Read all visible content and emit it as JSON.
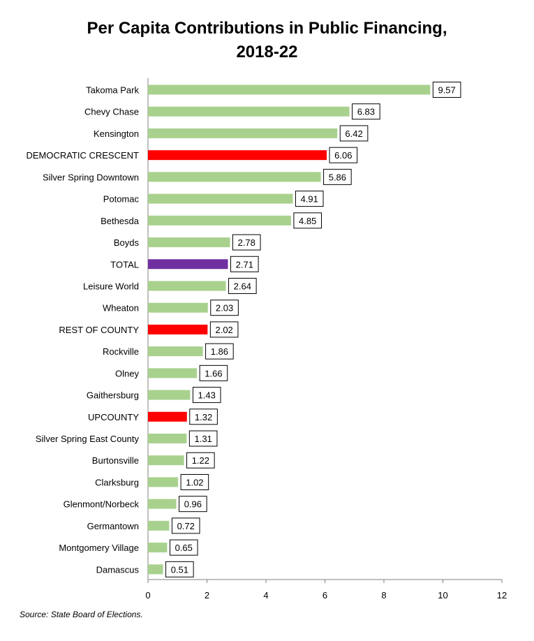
{
  "chart_data": {
    "type": "bar",
    "orientation": "horizontal",
    "title": "Per Capita Contributions in Public Financing,\n2018-22",
    "categories": [
      "Takoma Park",
      "Chevy Chase",
      "Kensington",
      "DEMOCRATIC CRESCENT",
      "Silver Spring Downtown",
      "Potomac",
      "Bethesda",
      "Boyds",
      "TOTAL",
      "Leisure World",
      "Wheaton",
      "REST OF COUNTY",
      "Rockville",
      "Olney",
      "Gaithersburg",
      "UPCOUNTY",
      "Silver Spring East County",
      "Burtonsville",
      "Clarksburg",
      "Glenmont/Norbeck",
      "Germantown",
      "Montgomery Village",
      "Damascus"
    ],
    "values": [
      9.57,
      6.83,
      6.42,
      6.06,
      5.86,
      4.91,
      4.85,
      2.78,
      2.71,
      2.64,
      2.03,
      2.02,
      1.86,
      1.66,
      1.43,
      1.32,
      1.31,
      1.22,
      1.02,
      0.96,
      0.72,
      0.65,
      0.51
    ],
    "value_labels": [
      "9.57",
      "6.83",
      "6.42",
      "6.06",
      "5.86",
      "4.91",
      "4.85",
      "2.78",
      "2.71",
      "2.64",
      "2.03",
      "2.02",
      "1.86",
      "1.66",
      "1.43",
      "1.32",
      "1.31",
      "1.22",
      "1.02",
      "0.96",
      "0.72",
      "0.65",
      "0.51"
    ],
    "bar_colors": [
      "#a9d18e",
      "#a9d18e",
      "#a9d18e",
      "#ff0000",
      "#a9d18e",
      "#a9d18e",
      "#a9d18e",
      "#a9d18e",
      "#7030a0",
      "#a9d18e",
      "#a9d18e",
      "#ff0000",
      "#a9d18e",
      "#a9d18e",
      "#a9d18e",
      "#ff0000",
      "#a9d18e",
      "#a9d18e",
      "#a9d18e",
      "#a9d18e",
      "#a9d18e",
      "#a9d18e",
      "#a9d18e"
    ],
    "xlim": [
      0,
      12
    ],
    "xticks": [
      "0",
      "2",
      "4",
      "6",
      "8",
      "10",
      "12"
    ],
    "grid": false,
    "legend": "none",
    "source": "Source: State Board of Elections."
  }
}
